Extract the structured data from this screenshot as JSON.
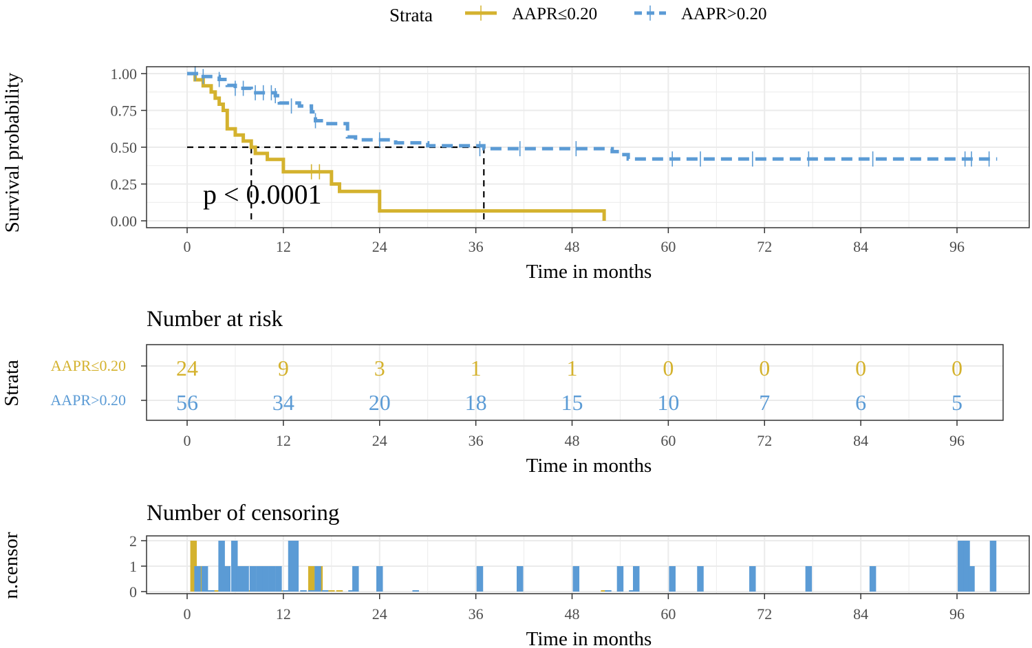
{
  "colors": {
    "low": "#D4B22E",
    "high": "#5B9BD5",
    "grid": "#ebebeb",
    "frame": "#333333"
  },
  "legend": {
    "title": "Strata",
    "items": [
      "AAPR≤0.20",
      "AAPR>0.20"
    ]
  },
  "chart_data": [
    {
      "id": "survival",
      "type": "line",
      "xlabel": "Time in months",
      "ylabel": "Survival probability",
      "xlim": [
        0,
        100
      ],
      "ylim": [
        0,
        1
      ],
      "x_ticks": [
        0,
        12,
        24,
        36,
        48,
        60,
        72,
        84,
        96
      ],
      "y_ticks": [
        "0.00",
        "0.25",
        "0.50",
        "0.75",
        "1.00"
      ],
      "pvalue": "p < 0.0001",
      "median_survival": [
        {
          "name": "AAPR≤0.20",
          "x": 8
        },
        {
          "name": "AAPR>0.20",
          "x": 37
        }
      ],
      "series": [
        {
          "name": "AAPR≤0.20",
          "style": "solid",
          "steps": [
            [
              0,
              1.0
            ],
            [
              1,
              0.958
            ],
            [
              2,
              0.917
            ],
            [
              3,
              0.875
            ],
            [
              3.5,
              0.833
            ],
            [
              4,
              0.792
            ],
            [
              4.5,
              0.75
            ],
            [
              5,
              0.625
            ],
            [
              6,
              0.583
            ],
            [
              7,
              0.542
            ],
            [
              8,
              0.5
            ],
            [
              8.5,
              0.458
            ],
            [
              10,
              0.417
            ],
            [
              12,
              0.333
            ],
            [
              17,
              0.333
            ],
            [
              18,
              0.25
            ],
            [
              19,
              0.2
            ],
            [
              24,
              0.067
            ],
            [
              52,
              0.067
            ],
            [
              52,
              0.0
            ]
          ],
          "censor_x": [
            1,
            15.5,
            16.5
          ],
          "censor_y": [
            1.0,
            0.333,
            0.333
          ]
        },
        {
          "name": "AAPR>0.20",
          "style": "dashed",
          "steps": [
            [
              0,
              1.0
            ],
            [
              2,
              0.98
            ],
            [
              4,
              0.96
            ],
            [
              5,
              0.92
            ],
            [
              6,
              0.9
            ],
            [
              8,
              0.87
            ],
            [
              11,
              0.85
            ],
            [
              11.5,
              0.8
            ],
            [
              14,
              0.78
            ],
            [
              15.5,
              0.74
            ],
            [
              16,
              0.68
            ],
            [
              17,
              0.66
            ],
            [
              20,
              0.57
            ],
            [
              21,
              0.55
            ],
            [
              23,
              0.55
            ],
            [
              26,
              0.53
            ],
            [
              30,
              0.51
            ],
            [
              37,
              0.49
            ],
            [
              53,
              0.47
            ],
            [
              54,
              0.45
            ],
            [
              55,
              0.42
            ],
            [
              101,
              0.42
            ]
          ],
          "censor_x": [
            1,
            2,
            4,
            6,
            7,
            8.5,
            9.5,
            10.5,
            11,
            13,
            16,
            24,
            36.5,
            41.5,
            48.5,
            60.5,
            64,
            70.5,
            77.5,
            85.5,
            97,
            97.8,
            100
          ],
          "censor_y": [
            1.0,
            0.98,
            0.96,
            0.9,
            0.9,
            0.87,
            0.87,
            0.87,
            0.85,
            0.78,
            0.68,
            0.55,
            0.49,
            0.49,
            0.49,
            0.42,
            0.42,
            0.42,
            0.42,
            0.42,
            0.42,
            0.42,
            0.42
          ]
        }
      ]
    },
    {
      "id": "risk",
      "type": "table",
      "title": "Number at risk",
      "ylabel": "Strata",
      "xlabel": "Time in months",
      "x_ticks": [
        0,
        12,
        24,
        36,
        48,
        60,
        72,
        84,
        96
      ],
      "rows": [
        {
          "name": "AAPR≤0.20",
          "values": [
            24,
            9,
            3,
            1,
            1,
            0,
            0,
            0,
            0
          ]
        },
        {
          "name": "AAPR>0.20",
          "values": [
            56,
            34,
            20,
            18,
            15,
            10,
            7,
            6,
            5
          ]
        }
      ]
    },
    {
      "id": "censor",
      "type": "bar",
      "title": "Number of censoring",
      "ylabel": "n.censor",
      "xlabel": "Time in months",
      "x_ticks": [
        0,
        12,
        24,
        36,
        48,
        60,
        72,
        84,
        96
      ],
      "y_ticks": [
        "0",
        "1",
        "2"
      ],
      "ylim": [
        0,
        2
      ],
      "series": [
        {
          "name": "AAPR≤0.20",
          "points": [
            [
              0.8,
              2
            ],
            [
              1.2,
              1
            ],
            [
              2.0,
              1
            ],
            [
              2.5,
              0
            ],
            [
              3.5,
              0
            ],
            [
              4.0,
              0
            ],
            [
              5.0,
              0
            ],
            [
              6.0,
              0
            ],
            [
              8.0,
              0
            ],
            [
              9.0,
              0
            ],
            [
              10.0,
              0
            ],
            [
              12.0,
              0
            ],
            [
              15.5,
              1
            ],
            [
              16.5,
              1
            ],
            [
              18.0,
              0
            ],
            [
              19.0,
              0
            ],
            [
              24.0,
              0
            ],
            [
              52.0,
              0
            ]
          ]
        },
        {
          "name": "AAPR>0.20",
          "points": [
            [
              1.3,
              1
            ],
            [
              2.2,
              1
            ],
            [
              3.0,
              0
            ],
            [
              4.3,
              2
            ],
            [
              5.0,
              1
            ],
            [
              5.9,
              2
            ],
            [
              6.5,
              1
            ],
            [
              7.3,
              1
            ],
            [
              8.2,
              1
            ],
            [
              9.0,
              1
            ],
            [
              9.8,
              1
            ],
            [
              10.6,
              1
            ],
            [
              11.4,
              1
            ],
            [
              12.3,
              0
            ],
            [
              13.0,
              2
            ],
            [
              13.5,
              2
            ],
            [
              14.5,
              0
            ],
            [
              15.5,
              0
            ],
            [
              16.3,
              1
            ],
            [
              17.2,
              0
            ],
            [
              20.5,
              0
            ],
            [
              21.0,
              1
            ],
            [
              24.0,
              1
            ],
            [
              28.5,
              0
            ],
            [
              36.5,
              1
            ],
            [
              41.5,
              1
            ],
            [
              48.5,
              1
            ],
            [
              52.5,
              0
            ],
            [
              54.0,
              1
            ],
            [
              55.5,
              0
            ],
            [
              56.0,
              1
            ],
            [
              60.5,
              1
            ],
            [
              64.0,
              1
            ],
            [
              70.5,
              1
            ],
            [
              77.5,
              1
            ],
            [
              85.5,
              1
            ],
            [
              96.5,
              2
            ],
            [
              97.2,
              2
            ],
            [
              97.8,
              1
            ],
            [
              100.5,
              2
            ]
          ]
        }
      ]
    }
  ]
}
